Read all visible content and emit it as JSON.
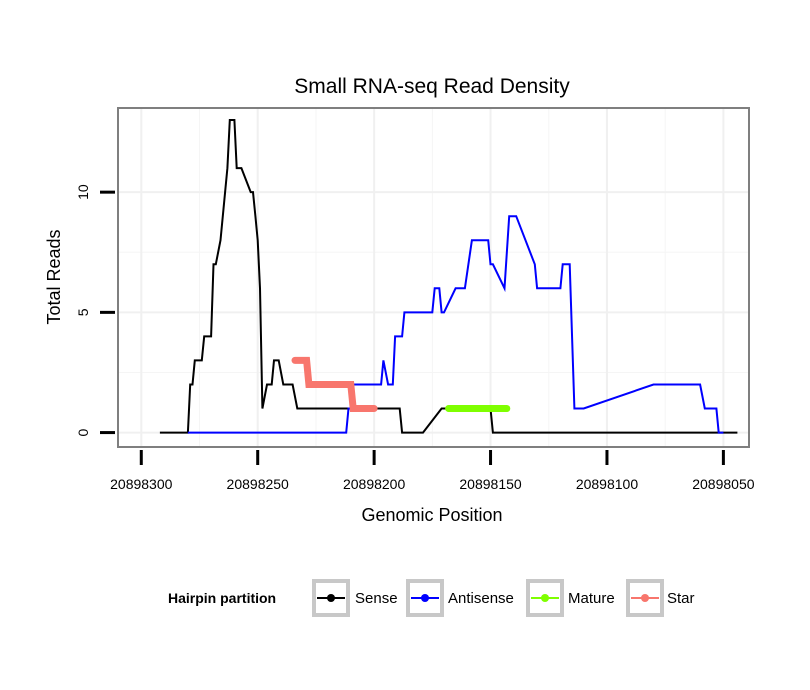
{
  "chart_data": {
    "type": "line",
    "title": "Small RNA-seq Read Density",
    "xlabel": "Genomic Position",
    "ylabel": "Total Reads",
    "x_reversed": true,
    "xlim": [
      20898310,
      20898039
    ],
    "ylim": [
      -0.6,
      13.5
    ],
    "x_ticks": [
      20898300,
      20898250,
      20898200,
      20898150,
      20898100,
      20898050
    ],
    "x_tick_labels": [
      "20898300",
      "20898250",
      "20898200",
      "20898150",
      "20898100",
      "20898050"
    ],
    "y_ticks": [
      0,
      5,
      10
    ],
    "y_tick_labels": [
      "0",
      "5",
      "10"
    ],
    "grid": true,
    "legend": {
      "title": "Hairpin partition",
      "position": "bottom",
      "entries": [
        "Sense",
        "Antisense",
        "Mature",
        "Star"
      ]
    },
    "series": [
      {
        "name": "Sense",
        "color": "#000000",
        "x": [
          20898292,
          20898280,
          20898279,
          20898278,
          20898277,
          20898274,
          20898273,
          20898270,
          20898269,
          20898268,
          20898266,
          20898264,
          20898263,
          20898262,
          20898260,
          20898259,
          20898257,
          20898253,
          20898252,
          20898251,
          20898250,
          20898249,
          20898248,
          20898246,
          20898245,
          20898244,
          20898243,
          20898241,
          20898239,
          20898238,
          20898236,
          20898235,
          20898233,
          20898232,
          20898230,
          20898228,
          20898227,
          20898220,
          20898219,
          20898218,
          20898216,
          20898215,
          20898211,
          20898191,
          20898189,
          20898188,
          20898186,
          20898183,
          20898179,
          20898171,
          20898170,
          20898168,
          20898167,
          20898150,
          20898149,
          20898145,
          20898143,
          20898083,
          20898081,
          20898044
        ],
        "values": [
          0,
          0,
          2,
          2,
          3,
          3,
          4,
          4,
          7,
          7,
          8,
          10,
          11,
          13,
          13,
          11,
          11,
          10,
          10,
          9,
          8,
          6,
          1,
          2,
          2,
          2,
          3,
          3,
          2,
          2,
          2,
          2,
          1,
          1,
          1,
          1,
          1,
          1,
          1,
          1,
          1,
          1,
          1,
          1,
          1,
          0,
          0,
          0,
          0,
          1,
          1,
          1,
          1,
          1,
          0,
          0,
          0,
          0,
          0,
          0
        ]
      },
      {
        "name": "Antisense",
        "color": "#0000ff",
        "x": [
          20898280,
          20898212,
          20898211,
          20898210,
          20898209,
          20898206,
          20898204,
          20898197,
          20898196,
          20898194,
          20898192,
          20898191,
          20898190,
          20898188,
          20898187,
          20898183,
          20898182,
          20898181,
          20898180,
          20898175,
          20898174,
          20898172,
          20898171,
          20898170,
          20898165,
          20898161,
          20898158,
          20898157,
          20898151,
          20898150,
          20898149,
          20898144,
          20898142,
          20898140,
          20898139,
          20898131,
          20898130,
          20898120,
          20898119,
          20898116,
          20898114,
          20898110,
          20898080,
          20898060,
          20898058,
          20898053,
          20898052,
          20898050
        ],
        "values": [
          0,
          0,
          1,
          1,
          2,
          2,
          2,
          2,
          3,
          2,
          2,
          4,
          4,
          4,
          5,
          5,
          5,
          5,
          5,
          5,
          6,
          6,
          5,
          5,
          6,
          6,
          8,
          8,
          8,
          7,
          7,
          6,
          9,
          9,
          9,
          7,
          6,
          6,
          7,
          7,
          1,
          1,
          2,
          2,
          1,
          1,
          0,
          0
        ]
      },
      {
        "name": "Mature",
        "color": "#7fff00",
        "x": [
          20898168,
          20898143
        ],
        "values": [
          1,
          1
        ]
      },
      {
        "name": "Star",
        "color": "#f8766d",
        "x": [
          20898234,
          20898229,
          20898228,
          20898210,
          20898209,
          20898200
        ],
        "values": [
          3,
          3,
          2,
          2,
          1,
          1
        ]
      }
    ]
  }
}
